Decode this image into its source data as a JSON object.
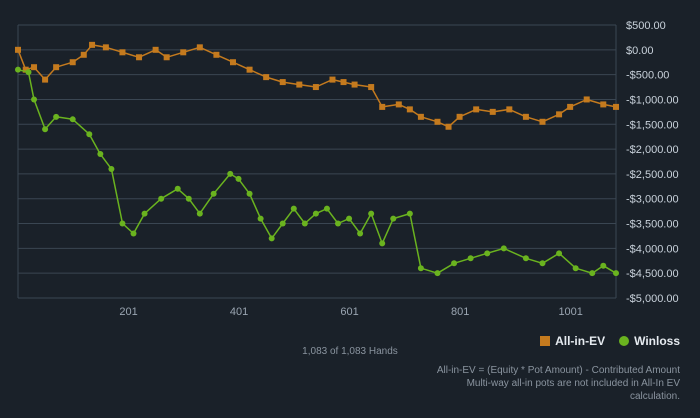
{
  "chart_data": {
    "type": "line",
    "title": "",
    "xlabel": "",
    "ylabel": "",
    "xlim": [
      1,
      1083
    ],
    "ylim": [
      -5000,
      500
    ],
    "x_ticks": [
      201,
      401,
      601,
      801,
      1001
    ],
    "x_tick_labels": [
      "201",
      "401",
      "601",
      "801",
      "1001"
    ],
    "y_ticks": [
      500,
      0,
      -500,
      -1000,
      -1500,
      -2000,
      -2500,
      -3000,
      -3500,
      -4000,
      -4500,
      -5000
    ],
    "y_tick_labels": [
      "$500.00",
      "$0.00",
      "-$500.00",
      "-$1,000.00",
      "-$1,500.00",
      "-$2,000.00",
      "-$2,500.00",
      "-$3,000.00",
      "-$3,500.00",
      "-$4,000.00",
      "-$4,500.00",
      "-$5,000.00"
    ],
    "grid": true,
    "legend": "bottom-right",
    "series": [
      {
        "name": "All-in-EV",
        "color": "#c47a1e",
        "marker": "square",
        "points": [
          [
            1,
            0
          ],
          [
            15,
            -400
          ],
          [
            30,
            -350
          ],
          [
            50,
            -600
          ],
          [
            70,
            -350
          ],
          [
            100,
            -250
          ],
          [
            120,
            -100
          ],
          [
            135,
            100
          ],
          [
            160,
            50
          ],
          [
            190,
            -50
          ],
          [
            220,
            -150
          ],
          [
            250,
            0
          ],
          [
            270,
            -150
          ],
          [
            300,
            -50
          ],
          [
            330,
            50
          ],
          [
            360,
            -100
          ],
          [
            390,
            -250
          ],
          [
            420,
            -400
          ],
          [
            450,
            -550
          ],
          [
            480,
            -650
          ],
          [
            510,
            -700
          ],
          [
            540,
            -750
          ],
          [
            570,
            -600
          ],
          [
            590,
            -650
          ],
          [
            610,
            -700
          ],
          [
            640,
            -750
          ],
          [
            660,
            -1150
          ],
          [
            690,
            -1100
          ],
          [
            710,
            -1200
          ],
          [
            730,
            -1350
          ],
          [
            760,
            -1450
          ],
          [
            780,
            -1550
          ],
          [
            800,
            -1350
          ],
          [
            830,
            -1200
          ],
          [
            860,
            -1250
          ],
          [
            890,
            -1200
          ],
          [
            920,
            -1350
          ],
          [
            950,
            -1450
          ],
          [
            980,
            -1300
          ],
          [
            1000,
            -1150
          ],
          [
            1030,
            -1000
          ],
          [
            1060,
            -1100
          ],
          [
            1083,
            -1150
          ]
        ]
      },
      {
        "name": "Winloss",
        "color": "#6ab31f",
        "marker": "circle",
        "points": [
          [
            1,
            -400
          ],
          [
            20,
            -450
          ],
          [
            30,
            -1000
          ],
          [
            50,
            -1600
          ],
          [
            70,
            -1350
          ],
          [
            100,
            -1400
          ],
          [
            130,
            -1700
          ],
          [
            150,
            -2100
          ],
          [
            170,
            -2400
          ],
          [
            190,
            -3500
          ],
          [
            210,
            -3700
          ],
          [
            230,
            -3300
          ],
          [
            260,
            -3000
          ],
          [
            290,
            -2800
          ],
          [
            310,
            -3000
          ],
          [
            330,
            -3300
          ],
          [
            355,
            -2900
          ],
          [
            385,
            -2500
          ],
          [
            400,
            -2600
          ],
          [
            420,
            -2900
          ],
          [
            440,
            -3400
          ],
          [
            460,
            -3800
          ],
          [
            480,
            -3500
          ],
          [
            500,
            -3200
          ],
          [
            520,
            -3500
          ],
          [
            540,
            -3300
          ],
          [
            560,
            -3200
          ],
          [
            580,
            -3500
          ],
          [
            600,
            -3400
          ],
          [
            620,
            -3700
          ],
          [
            640,
            -3300
          ],
          [
            660,
            -3900
          ],
          [
            680,
            -3400
          ],
          [
            710,
            -3300
          ],
          [
            730,
            -4400
          ],
          [
            760,
            -4500
          ],
          [
            790,
            -4300
          ],
          [
            820,
            -4200
          ],
          [
            850,
            -4100
          ],
          [
            880,
            -4000
          ],
          [
            920,
            -4200
          ],
          [
            950,
            -4300
          ],
          [
            980,
            -4100
          ],
          [
            1010,
            -4400
          ],
          [
            1040,
            -4500
          ],
          [
            1060,
            -4350
          ],
          [
            1083,
            -4500
          ]
        ]
      }
    ]
  },
  "footer": {
    "hands_count": "1,083 of 1,083 Hands",
    "note_line1": "All-in-EV = (Equity * Pot Amount) - Contributed Amount",
    "note_line2": "Multi-way all-in pots are not included in All-In EV",
    "note_line3": "calculation."
  }
}
